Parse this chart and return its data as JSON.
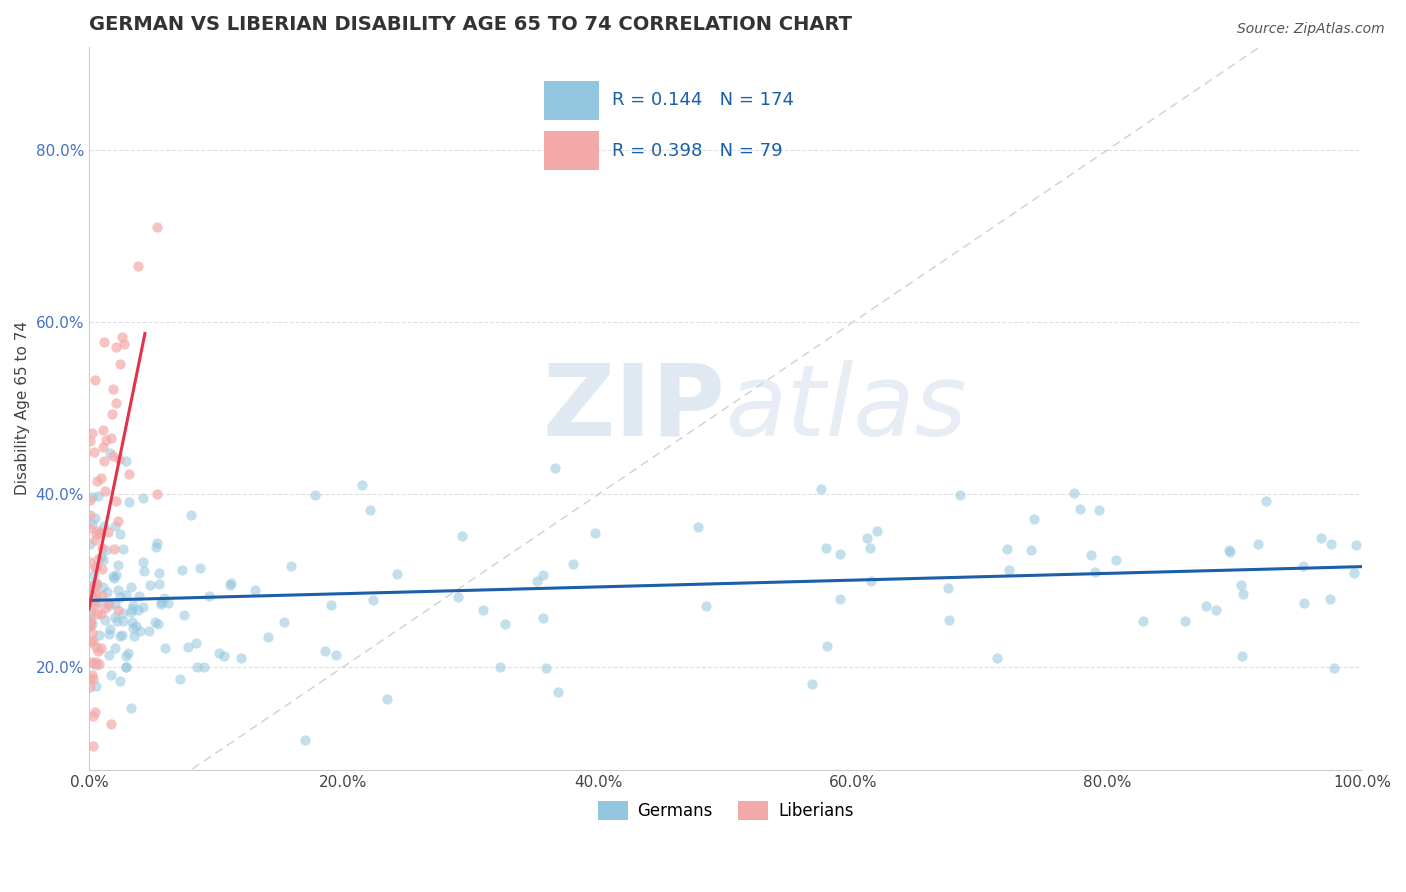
{
  "title": "GERMAN VS LIBERIAN DISABILITY AGE 65 TO 74 CORRELATION CHART",
  "source_text": "Source: ZipAtlas.com",
  "ylabel": "Disability Age 65 to 74",
  "xlim": [
    0.0,
    1.0
  ],
  "ylim": [
    0.08,
    0.92
  ],
  "xticks": [
    0.0,
    0.2,
    0.4,
    0.6,
    0.8,
    1.0
  ],
  "xtick_labels": [
    "0.0%",
    "20.0%",
    "40.0%",
    "60.0%",
    "80.0%",
    "100.0%"
  ],
  "yticks": [
    0.2,
    0.4,
    0.6,
    0.8
  ],
  "ytick_labels": [
    "20.0%",
    "40.0%",
    "60.0%",
    "80.0%"
  ],
  "german_color": "#92c5de",
  "liberian_color": "#f4a9a9",
  "german_trend_color": "#1a5fa8",
  "liberian_trend_color": "#e0334c",
  "diag_color": "#d0d0d0",
  "R_german": 0.144,
  "N_german": 174,
  "R_liberian": 0.398,
  "N_liberian": 79,
  "title_fontsize": 14,
  "axis_label_fontsize": 11,
  "tick_fontsize": 11,
  "seed": 1234
}
